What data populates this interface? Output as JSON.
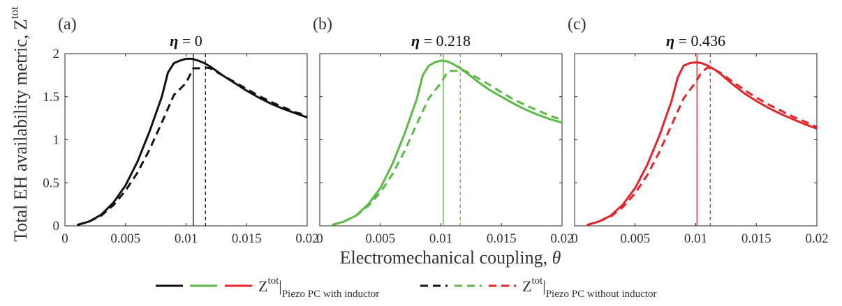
{
  "figure": {
    "ylabel_main": "Total EH availability metric, Z",
    "ylabel_sup": "tot",
    "xlabel_main": "Electromechanical coupling, ",
    "xlabel_symbol": "θ"
  },
  "legend": {
    "with_z": "Z",
    "with_sup": "tot",
    "with_sub": "Piezo PC with inductor",
    "without_z": "Z",
    "without_sup": "tot",
    "without_sub": "Piezo PC without inductor"
  },
  "chart_data": [
    {
      "type": "line",
      "panel_label": "(a)",
      "title_symbol": "η",
      "title_value": " = 0",
      "color": "#111111",
      "xlim": [
        0,
        0.02
      ],
      "ylim": [
        0,
        2
      ],
      "xticks": [
        0,
        0.005,
        0.01,
        0.015,
        0.02
      ],
      "xtick_labels": [
        "0",
        "0.005",
        "0.01",
        "0.015",
        "0.02"
      ],
      "yticks": [
        0,
        0.5,
        1,
        1.5,
        2
      ],
      "ytick_labels": [
        "0",
        "0.5",
        "1",
        "1.5",
        "2"
      ],
      "vlines": {
        "with": 0.0106,
        "without": 0.0116
      },
      "series": [
        {
          "style": "solid",
          "x": [
            0.001,
            0.002,
            0.003,
            0.004,
            0.005,
            0.006,
            0.007,
            0.008,
            0.0085,
            0.009,
            0.0095,
            0.01,
            0.0105,
            0.011,
            0.0115,
            0.012,
            0.013,
            0.014,
            0.015,
            0.016,
            0.017,
            0.018,
            0.019,
            0.02
          ],
          "y": [
            0.01,
            0.05,
            0.13,
            0.27,
            0.47,
            0.75,
            1.1,
            1.5,
            1.78,
            1.89,
            1.92,
            1.94,
            1.94,
            1.92,
            1.89,
            1.85,
            1.75,
            1.66,
            1.57,
            1.49,
            1.42,
            1.36,
            1.31,
            1.26
          ]
        },
        {
          "style": "dashed",
          "x": [
            0.001,
            0.002,
            0.003,
            0.004,
            0.005,
            0.006,
            0.007,
            0.008,
            0.009,
            0.01,
            0.0106,
            0.011,
            0.0116,
            0.012,
            0.013,
            0.014,
            0.015,
            0.016,
            0.017,
            0.018,
            0.019,
            0.02
          ],
          "y": [
            0.01,
            0.05,
            0.12,
            0.24,
            0.41,
            0.62,
            0.89,
            1.2,
            1.52,
            1.66,
            1.83,
            1.83,
            1.84,
            1.83,
            1.75,
            1.67,
            1.59,
            1.51,
            1.44,
            1.38,
            1.32,
            1.28
          ]
        }
      ]
    },
    {
      "type": "line",
      "panel_label": "(b)",
      "title_symbol": "η",
      "title_value": " = 0.218",
      "color": "#5cb946",
      "xlim": [
        0,
        0.02
      ],
      "ylim": [
        0,
        2
      ],
      "xticks": [
        0,
        0.005,
        0.01,
        0.015,
        0.02
      ],
      "xtick_labels": [
        "0",
        "0.005",
        "0.01",
        "0.015",
        "0.02"
      ],
      "yticks": [
        0,
        0.5,
        1,
        1.5,
        2
      ],
      "ytick_labels": [],
      "vlines": {
        "with": 0.0102,
        "without": 0.0116
      },
      "series": [
        {
          "style": "solid",
          "x": [
            0.001,
            0.002,
            0.003,
            0.004,
            0.005,
            0.006,
            0.007,
            0.008,
            0.0085,
            0.009,
            0.0095,
            0.01,
            0.0105,
            0.011,
            0.0115,
            0.012,
            0.013,
            0.014,
            0.015,
            0.016,
            0.017,
            0.018,
            0.019,
            0.02
          ],
          "y": [
            0.01,
            0.05,
            0.12,
            0.25,
            0.44,
            0.72,
            1.07,
            1.47,
            1.75,
            1.86,
            1.9,
            1.92,
            1.91,
            1.88,
            1.84,
            1.79,
            1.68,
            1.58,
            1.5,
            1.42,
            1.35,
            1.29,
            1.24,
            1.2
          ]
        },
        {
          "style": "dashed",
          "x": [
            0.001,
            0.002,
            0.003,
            0.004,
            0.005,
            0.006,
            0.007,
            0.008,
            0.009,
            0.01,
            0.0106,
            0.011,
            0.0116,
            0.012,
            0.013,
            0.014,
            0.015,
            0.016,
            0.017,
            0.018,
            0.019,
            0.02
          ],
          "y": [
            0.01,
            0.05,
            0.12,
            0.23,
            0.39,
            0.6,
            0.87,
            1.18,
            1.48,
            1.66,
            1.8,
            1.8,
            1.8,
            1.8,
            1.72,
            1.64,
            1.55,
            1.47,
            1.4,
            1.34,
            1.28,
            1.23
          ]
        }
      ]
    },
    {
      "type": "line",
      "panel_label": "(c)",
      "title_symbol": "η",
      "title_value": " = 0.436",
      "color": "#e3262b",
      "xlim": [
        0,
        0.02
      ],
      "ylim": [
        0,
        2
      ],
      "xticks": [
        0,
        0.005,
        0.01,
        0.015,
        0.02
      ],
      "xtick_labels": [
        "0",
        "0.005",
        "0.01",
        "0.015",
        "0.02"
      ],
      "yticks": [
        0,
        0.5,
        1,
        1.5,
        2
      ],
      "ytick_labels": [],
      "vlines": {
        "with": 0.0101,
        "without": 0.0112
      },
      "series": [
        {
          "style": "solid",
          "x": [
            0.001,
            0.002,
            0.003,
            0.004,
            0.005,
            0.006,
            0.007,
            0.008,
            0.0085,
            0.009,
            0.0095,
            0.01,
            0.0105,
            0.011,
            0.0115,
            0.012,
            0.013,
            0.014,
            0.015,
            0.016,
            0.017,
            0.018,
            0.019,
            0.02
          ],
          "y": [
            0.01,
            0.05,
            0.12,
            0.25,
            0.44,
            0.71,
            1.05,
            1.45,
            1.72,
            1.86,
            1.89,
            1.9,
            1.89,
            1.86,
            1.82,
            1.77,
            1.65,
            1.54,
            1.45,
            1.37,
            1.3,
            1.24,
            1.18,
            1.13
          ]
        },
        {
          "style": "dashed",
          "x": [
            0.001,
            0.002,
            0.003,
            0.004,
            0.005,
            0.006,
            0.007,
            0.008,
            0.009,
            0.01,
            0.0105,
            0.011,
            0.0115,
            0.012,
            0.013,
            0.014,
            0.015,
            0.016,
            0.017,
            0.018,
            0.019,
            0.02
          ],
          "y": [
            0.01,
            0.05,
            0.11,
            0.22,
            0.38,
            0.59,
            0.86,
            1.17,
            1.48,
            1.67,
            1.79,
            1.84,
            1.82,
            1.78,
            1.68,
            1.58,
            1.49,
            1.41,
            1.34,
            1.27,
            1.21,
            1.15
          ]
        }
      ]
    }
  ]
}
